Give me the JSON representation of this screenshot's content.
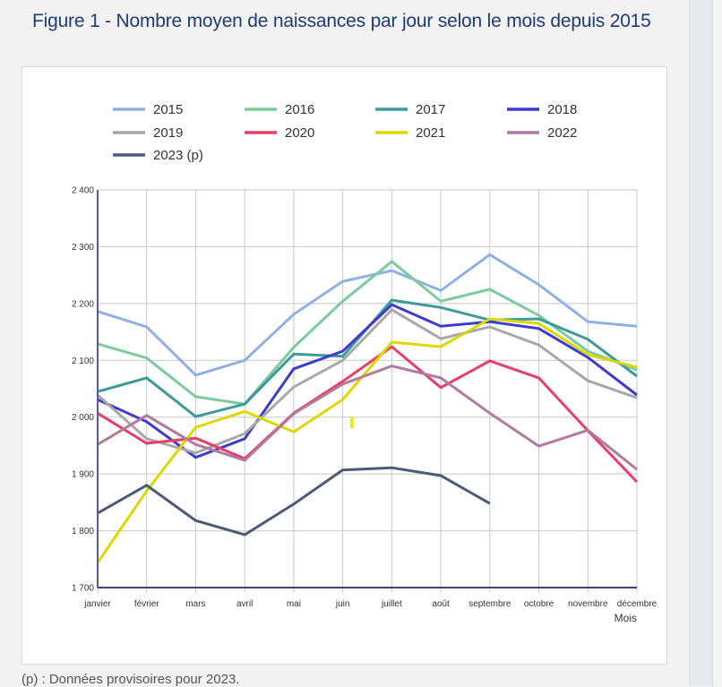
{
  "page": {
    "title": "Figure 1 - Nombre moyen de naissances par jour selon le mois depuis 2015",
    "footnote": "(p) : Données provisoires pour 2023."
  },
  "chart_data": {
    "type": "line",
    "title": "Figure 1 - Nombre moyen de naissances par jour selon le mois depuis 2015",
    "xlabel": "Mois",
    "ylabel": "",
    "ylim": [
      1700,
      2400
    ],
    "yticks": [
      1700,
      1800,
      1900,
      2000,
      2100,
      2200,
      2300,
      2400
    ],
    "ytick_labels": [
      "1 700",
      "1 800",
      "1 900",
      "2 000",
      "2 100",
      "2 200",
      "2 300",
      "2 400"
    ],
    "grid": true,
    "legend_position": "top",
    "categories": [
      "janvier",
      "février",
      "mars",
      "avril",
      "mai",
      "juin",
      "juillet",
      "août",
      "septembre",
      "octobre",
      "novembre",
      "décembre"
    ],
    "series": [
      {
        "name": "2015",
        "color": "#8fb0e3",
        "values": [
          2186,
          2159,
          2074,
          2100,
          2181,
          2239,
          2258,
          2223,
          2286,
          2233,
          2168,
          2160
        ]
      },
      {
        "name": "2016",
        "color": "#7ccb9c",
        "values": [
          2129,
          2104,
          2036,
          2023,
          2123,
          2204,
          2274,
          2204,
          2225,
          2179,
          2116,
          2083
        ]
      },
      {
        "name": "2017",
        "color": "#3a9b9b",
        "values": [
          2045,
          2069,
          2001,
          2023,
          2111,
          2107,
          2206,
          2193,
          2171,
          2173,
          2137,
          2072
        ]
      },
      {
        "name": "2018",
        "color": "#3b3bcf",
        "values": [
          2031,
          1992,
          1929,
          1962,
          2085,
          2116,
          2198,
          2160,
          2168,
          2156,
          2105,
          2039
        ]
      },
      {
        "name": "2019",
        "color": "#a8a8a8",
        "values": [
          2039,
          1962,
          1937,
          1971,
          2053,
          2100,
          2189,
          2138,
          2159,
          2127,
          2064,
          2034
        ]
      },
      {
        "name": "2020",
        "color": "#e83e6a",
        "values": [
          2007,
          1954,
          1963,
          1927,
          2007,
          2063,
          2124,
          2052,
          2099,
          2069,
          1976,
          1886
        ]
      },
      {
        "name": "2021",
        "color": "#dcd800",
        "values": [
          1744,
          1870,
          1982,
          2010,
          1974,
          2031,
          2132,
          2124,
          2173,
          2165,
          2110,
          2088
        ]
      },
      {
        "name": "2022",
        "color": "#b07aa1",
        "values": [
          1952,
          2003,
          1952,
          1924,
          2006,
          2058,
          2090,
          2069,
          2007,
          1949,
          1977,
          1908
        ]
      },
      {
        "name": "2023 (p)",
        "color": "#4a5a78",
        "values": [
          1831,
          1880,
          1818,
          1793,
          1847,
          1907,
          1911,
          1897,
          1848,
          null,
          null,
          null
        ]
      }
    ],
    "annotations": [
      {
        "type": "marker",
        "color": "#f2e600",
        "x": "juin",
        "y": 1990
      }
    ]
  }
}
